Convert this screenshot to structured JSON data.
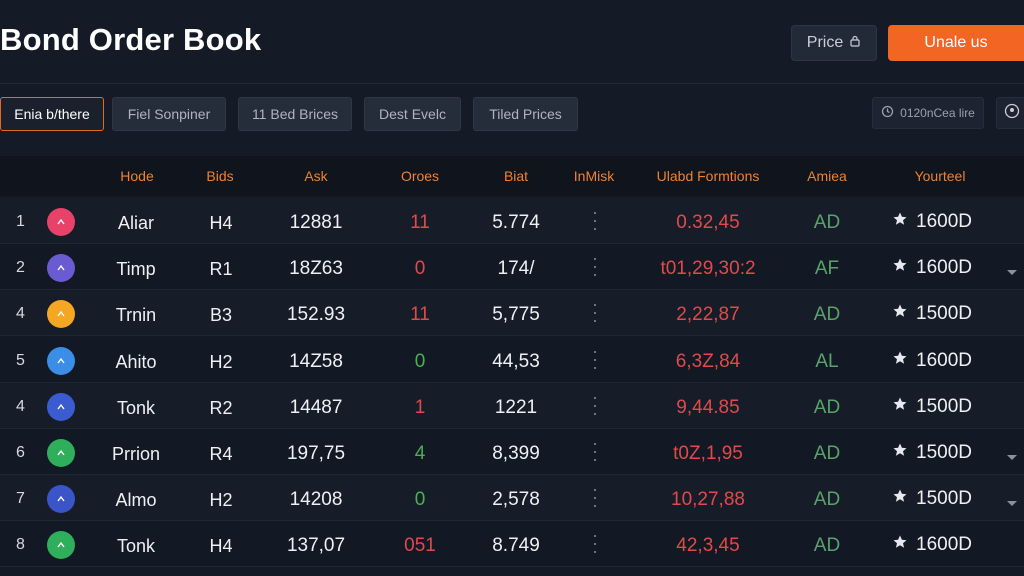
{
  "header": {
    "title": "Bond Order Book",
    "price_button": "Price",
    "primary_button": "Unale us"
  },
  "toolbar": {
    "tabs": [
      {
        "label": "Enia b/there",
        "active": true
      },
      {
        "label": "Fiel Sonpiner",
        "active": false
      },
      {
        "label": "11 Bed Brices",
        "active": false
      },
      {
        "label": "Dest Evelc",
        "active": false
      },
      {
        "label": "Tiled Prices",
        "active": false
      }
    ],
    "sort_label": "0120nCea lire"
  },
  "table": {
    "columns": [
      "Hode",
      "Bids",
      "Ask",
      "Oroes",
      "Biat",
      "InMisk",
      "Ulabd Formtions",
      "Amiea",
      "Yourteel"
    ],
    "rows": [
      {
        "num": "1",
        "name": "Aliar",
        "bids": "H4",
        "ask": "12881",
        "ordes": "11",
        "ordes_color": "red",
        "biat": "5.774",
        "formations": "0.32,45",
        "amiea": "AD",
        "yourteel": "1600D",
        "icon_color": "#e8416a",
        "chevron": false
      },
      {
        "num": "2",
        "name": "Timp",
        "bids": "R1",
        "ask": "18Z63",
        "ordes": "0",
        "ordes_color": "red",
        "biat": "174/",
        "formations": "t01,29,30:2",
        "amiea": "AF",
        "yourteel": "1600D",
        "icon_color": "#6b5bd2",
        "chevron": true
      },
      {
        "num": "4",
        "name": "Trnin",
        "bids": "B3",
        "ask": "152.93",
        "ordes": "11",
        "ordes_color": "red",
        "biat": "5,775",
        "formations": "2,22,87",
        "amiea": "AD",
        "yourteel": "1500D",
        "icon_color": "#f5a623",
        "chevron": false
      },
      {
        "num": "5",
        "name": "Ahito",
        "bids": "H2",
        "ask": "14Z58",
        "ordes": "0",
        "ordes_color": "green",
        "biat": "44,53",
        "formations": "6,3Z,84",
        "amiea": "AL",
        "yourteel": "1600D",
        "icon_color": "#3a8ee6",
        "chevron": false
      },
      {
        "num": "4",
        "name": "Tonk",
        "bids": "R2",
        "ask": "14487",
        "ordes": "1",
        "ordes_color": "red",
        "biat": "1221",
        "formations": "9,44.85",
        "amiea": "AD",
        "yourteel": "1500D",
        "icon_color": "#3b5bd0",
        "chevron": false
      },
      {
        "num": "6",
        "name": "Prrion",
        "bids": "R4",
        "ask": "197,75",
        "ordes": "4",
        "ordes_color": "green",
        "biat": "8,399",
        "formations": "t0Z,1,95",
        "amiea": "AD",
        "yourteel": "1500D",
        "icon_color": "#2fae5b",
        "chevron": true
      },
      {
        "num": "7",
        "name": "Almo",
        "bids": "H2",
        "ask": "14208",
        "ordes": "0",
        "ordes_color": "green",
        "biat": "2,578",
        "formations": "10,27,88",
        "amiea": "AD",
        "yourteel": "1500D",
        "icon_color": "#3a55c8",
        "chevron": true
      },
      {
        "num": "8",
        "name": "Tonk",
        "bids": "H4",
        "ask": "137,07",
        "ordes": "051",
        "ordes_color": "red",
        "biat": "8.749",
        "formations": "42,3,45",
        "amiea": "AD",
        "yourteel": "1600D",
        "icon_color": "#2fae5b",
        "chevron": false
      }
    ]
  },
  "colors": {
    "accent": "#f26522",
    "header_text": "#f0822f",
    "negative": "#e04a4a",
    "positive": "#4caf50"
  },
  "icons": {
    "price_button": "lock-icon",
    "sort_chip": "clock-icon",
    "avatar_chip": "user-icon",
    "row_star": "star-icon",
    "row_menu": "kebab-icon",
    "row_chevron": "chevron-down-icon"
  }
}
